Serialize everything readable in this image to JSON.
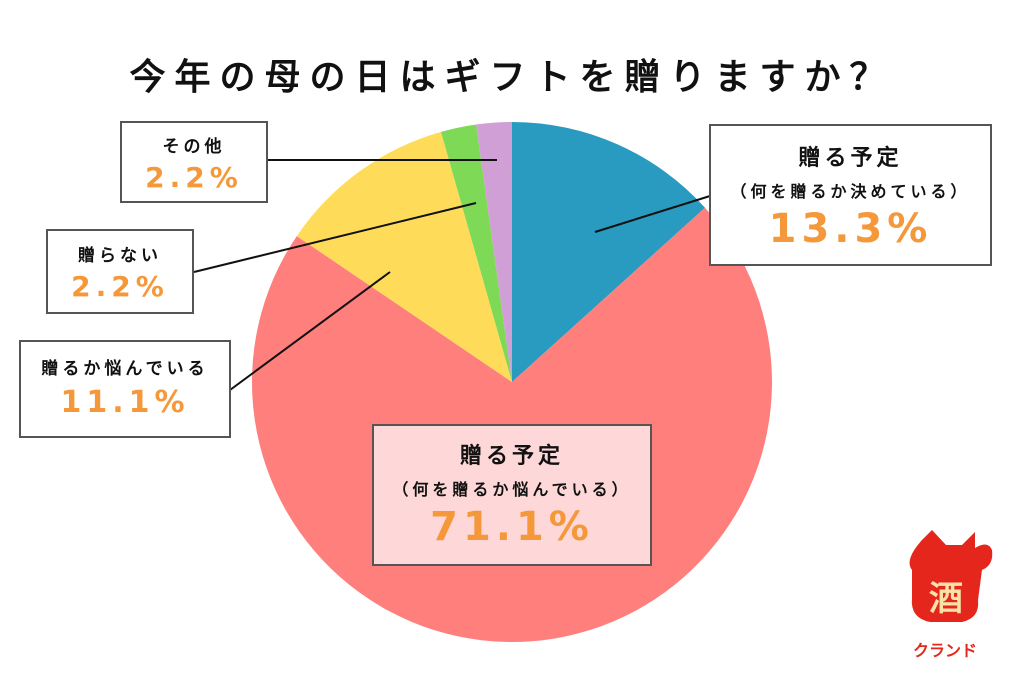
{
  "chart_data": {
    "type": "pie",
    "title": "今年の母の日はギフトを贈りますか？",
    "slices": [
      {
        "label": "贈る予定",
        "sublabel": "（何を贈るか決めている）",
        "value": 13.3,
        "display": "13.3%",
        "color": "#2a9bc0"
      },
      {
        "label": "贈る予定",
        "sublabel": "（何を贈るか悩んでいる）",
        "value": 71.1,
        "display": "71.1%",
        "color": "#fe7f7c"
      },
      {
        "label": "贈るか悩んでいる",
        "value": 11.1,
        "display": "11.1%",
        "color": "#fedc5a"
      },
      {
        "label": "贈らない",
        "value": 2.2,
        "display": "2.2%",
        "color": "#7ed957"
      },
      {
        "label": "その他",
        "value": 2.2,
        "display": "2.2%",
        "color": "#cf9fd6"
      }
    ],
    "start": "top",
    "direction": "clockwise"
  },
  "logo": {
    "text": "クランド",
    "mark": "酒",
    "color": "#e5261c"
  }
}
